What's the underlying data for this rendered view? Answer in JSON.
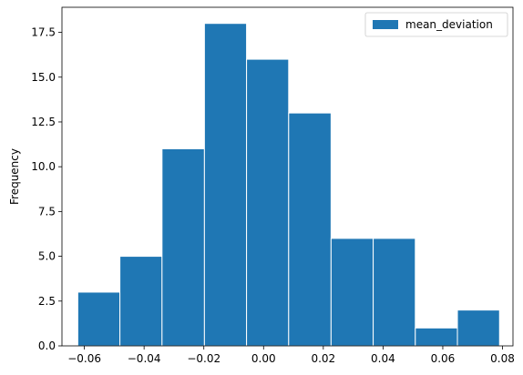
{
  "chart_data": {
    "type": "histogram",
    "title": "",
    "xlabel": "",
    "ylabel": "Frequency",
    "xlim": [
      -0.0675,
      0.0835
    ],
    "ylim": [
      0,
      18.9
    ],
    "bin_edges": [
      -0.0622,
      -0.0481,
      -0.034,
      -0.0198,
      -0.0057,
      0.0084,
      0.0226,
      0.0367,
      0.0508,
      0.0649,
      0.079
    ],
    "counts": [
      3,
      5,
      11,
      18,
      16,
      13,
      6,
      6,
      1,
      2
    ],
    "x_ticks": [
      -0.06,
      -0.04,
      -0.02,
      0.0,
      0.02,
      0.04,
      0.06,
      0.08
    ],
    "x_tick_labels": [
      "−0.06",
      "−0.04",
      "−0.02",
      "0.00",
      "0.02",
      "0.04",
      "0.06",
      "0.08"
    ],
    "y_ticks": [
      0,
      2.5,
      5,
      7.5,
      10,
      12.5,
      15,
      17.5
    ],
    "y_tick_labels": [
      "0.0",
      "2.5",
      "5.0",
      "7.5",
      "10.0",
      "12.5",
      "15.0",
      "17.5"
    ],
    "series": [
      {
        "name": "mean_deviation",
        "color": "#1f77b4"
      }
    ],
    "legend": {
      "position": "top-right"
    },
    "grid": false
  }
}
